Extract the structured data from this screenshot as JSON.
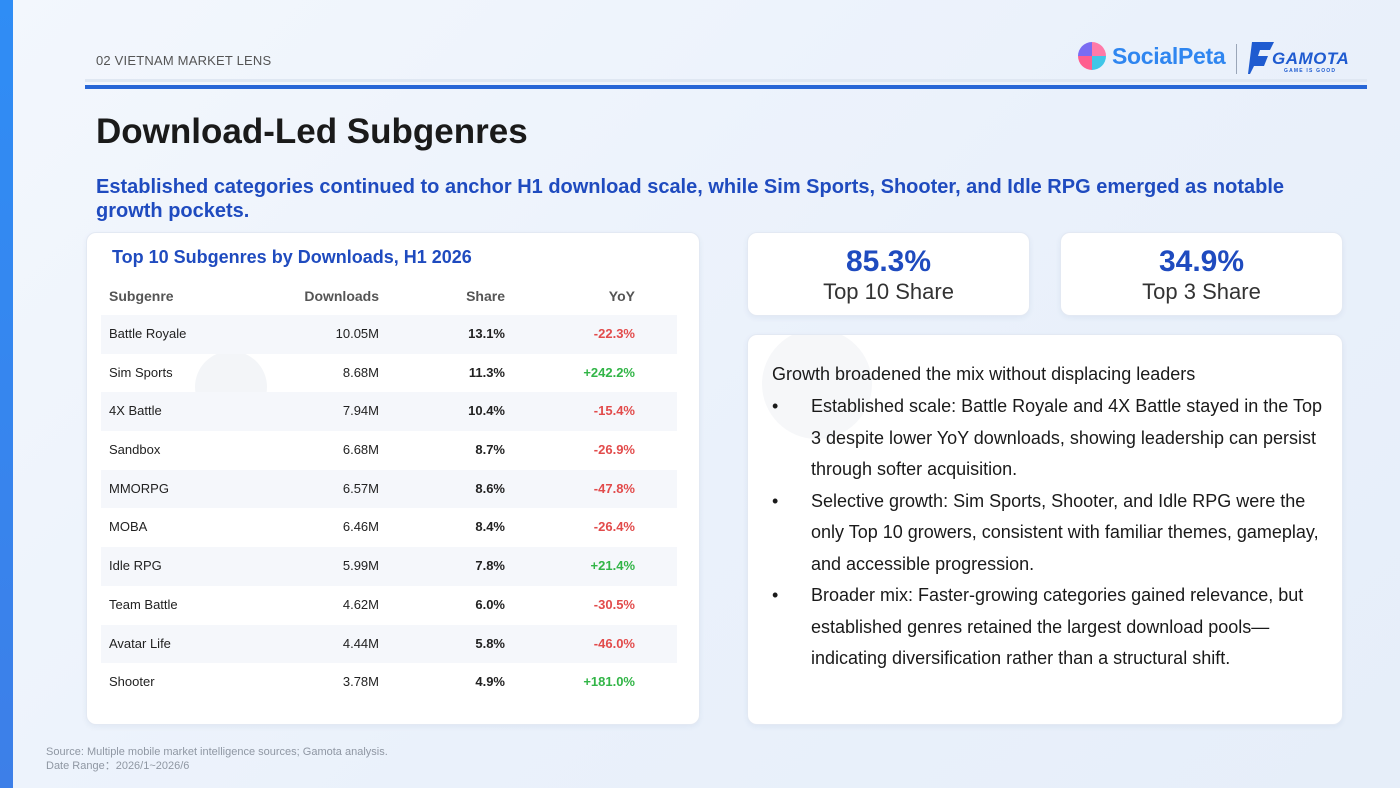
{
  "header": {
    "section_label": "02 VIETNAM MARKET LENS",
    "logos": {
      "socialpeta": "SocialPeta",
      "gamota": "GAMOTA",
      "gamota_tagline": "GAME IS GOOD"
    }
  },
  "page": {
    "title": "Download-Led Subgenres",
    "subtitle": "Established categories continued to anchor H1 download scale, while Sim Sports, Shooter, and Idle RPG emerged as notable growth pockets."
  },
  "table": {
    "title": "Top 10 Subgenres by Downloads, H1 2026",
    "columns": [
      "Subgenre",
      "Downloads",
      "Share",
      "YoY"
    ],
    "rows": [
      {
        "subgenre": "Battle Royale",
        "downloads": "10.05M",
        "share": "13.1%",
        "yoy": "-22.3%"
      },
      {
        "subgenre": "Sim Sports",
        "downloads": "8.68M",
        "share": "11.3%",
        "yoy": "+242.2%"
      },
      {
        "subgenre": "4X Battle",
        "downloads": "7.94M",
        "share": "10.4%",
        "yoy": "-15.4%"
      },
      {
        "subgenre": "Sandbox",
        "downloads": "6.68M",
        "share": "8.7%",
        "yoy": "-26.9%"
      },
      {
        "subgenre": "MMORPG",
        "downloads": "6.57M",
        "share": "8.6%",
        "yoy": "-47.8%"
      },
      {
        "subgenre": "MOBA",
        "downloads": "6.46M",
        "share": "8.4%",
        "yoy": "-26.4%"
      },
      {
        "subgenre": "Idle RPG",
        "downloads": "5.99M",
        "share": "7.8%",
        "yoy": "+21.4%"
      },
      {
        "subgenre": "Team Battle",
        "downloads": "4.62M",
        "share": "6.0%",
        "yoy": "-30.5%"
      },
      {
        "subgenre": "Avatar Life",
        "downloads": "4.44M",
        "share": "5.8%",
        "yoy": "-46.0%"
      },
      {
        "subgenre": "Shooter",
        "downloads": "3.78M",
        "share": "4.9%",
        "yoy": "+181.0%"
      }
    ]
  },
  "stats": [
    {
      "value": "85.3%",
      "label": "Top 10 Share"
    },
    {
      "value": "34.9%",
      "label": "Top 3 Share"
    }
  ],
  "insights": {
    "heading": "Growth broadened the mix without displacing leaders",
    "bullets": [
      "Established scale: Battle Royale and 4X Battle stayed in the Top 3 despite lower YoY downloads, showing leadership can persist through softer acquisition.",
      "Selective growth: Sim Sports, Shooter, and Idle RPG were the only Top 10 growers, consistent with familiar themes, gameplay, and accessible progression.",
      "Broader mix: Faster-growing categories gained relevance, but established genres retained the largest download pools—indicating diversification rather than a structural shift."
    ]
  },
  "footer": {
    "source": "Source: Multiple mobile market intelligence sources; Gamota analysis.",
    "date_range": "Date Range：2026/1~2026/6"
  },
  "colors": {
    "accent_blue": "#1f4bbf",
    "rule_blue": "#2766d6",
    "negative": "#e24b4b",
    "positive": "#32b547"
  }
}
